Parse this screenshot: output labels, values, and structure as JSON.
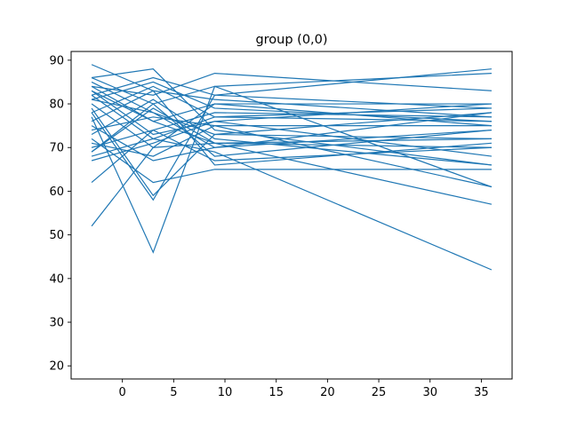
{
  "chart_data": {
    "type": "line",
    "title": "group (0,0)",
    "xlabel": "",
    "ylabel": "",
    "xlim": [
      -5,
      38
    ],
    "ylim": [
      17,
      92
    ],
    "xticks": [
      0,
      5,
      10,
      15,
      20,
      25,
      30,
      35
    ],
    "yticks": [
      20,
      30,
      40,
      50,
      60,
      70,
      80,
      90
    ],
    "grid": false,
    "line_color": "#1f77b4",
    "x": [
      -3,
      3,
      9,
      36
    ],
    "series": [
      {
        "values": [
          89,
          83,
          81,
          77
        ]
      },
      {
        "values": [
          86,
          88,
          74,
          66
        ]
      },
      {
        "values": [
          86,
          80,
          84,
          61
        ]
      },
      {
        "values": [
          84,
          82,
          87,
          83
        ]
      },
      {
        "values": [
          84,
          76,
          80,
          80
        ]
      },
      {
        "values": [
          83,
          73,
          76,
          80
        ]
      },
      {
        "values": [
          82,
          86,
          82,
          88
        ]
      },
      {
        "values": [
          82,
          72,
          77,
          79
        ]
      },
      {
        "values": [
          81,
          78,
          70,
          74
        ]
      },
      {
        "values": [
          80,
          70,
          80,
          75
        ]
      },
      {
        "values": [
          79,
          59,
          73,
          78
        ]
      },
      {
        "values": [
          78,
          84,
          77,
          76
        ]
      },
      {
        "values": [
          77,
          46,
          84,
          87
        ]
      },
      {
        "values": [
          76,
          83,
          66,
          71
        ]
      },
      {
        "values": [
          74,
          77,
          75,
          61
        ]
      },
      {
        "values": [
          73,
          81,
          72,
          66
        ]
      },
      {
        "values": [
          72,
          62,
          65,
          65
        ]
      },
      {
        "values": [
          71,
          68,
          75,
          75
        ]
      },
      {
        "values": [
          70,
          74,
          78,
          77
        ]
      },
      {
        "values": [
          69,
          79,
          71,
          70
        ]
      },
      {
        "values": [
          68,
          72,
          69,
          42
        ]
      },
      {
        "values": [
          67,
          71,
          76,
          68
        ]
      },
      {
        "values": [
          62,
          74,
          67,
          70
        ]
      },
      {
        "values": [
          52,
          70,
          71,
          72
        ]
      },
      {
        "values": [
          78,
          58,
          82,
          79
        ]
      },
      {
        "values": [
          83,
          76,
          71,
          57
        ]
      },
      {
        "values": [
          75,
          67,
          70,
          78
        ]
      },
      {
        "values": [
          69,
          80,
          68,
          74
        ]
      },
      {
        "values": [
          85,
          78,
          73,
          72
        ]
      },
      {
        "values": [
          81,
          85,
          79,
          76
        ]
      }
    ]
  }
}
